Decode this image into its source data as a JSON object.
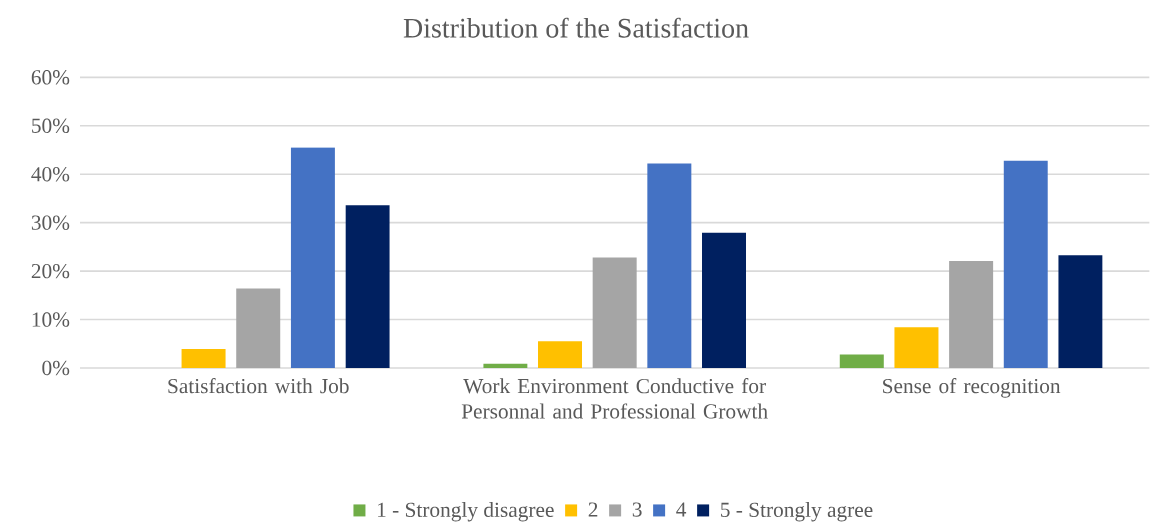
{
  "chart_data": {
    "type": "bar",
    "title": "Distribution of the Satisfaction",
    "categories": [
      "Satisfaction with Job",
      "Work Environment Conductive for Personnal and Professional Growth",
      "Sense of recognition"
    ],
    "series": [
      {
        "name": "1 - Strongly disagree",
        "color": "#70ad47",
        "values": [
          null,
          0.9,
          2.8
        ]
      },
      {
        "name": "2",
        "color": "#ffc000",
        "values": [
          3.9,
          5.5,
          8.4
        ]
      },
      {
        "name": "3",
        "color": "#a5a5a5",
        "values": [
          16.4,
          22.8,
          22.1
        ]
      },
      {
        "name": "4",
        "color": "#4472c4",
        "values": [
          45.5,
          42.2,
          42.8
        ]
      },
      {
        "name": "5 - Strongly agree",
        "color": "#002060",
        "values": [
          33.6,
          27.9,
          23.3
        ]
      }
    ],
    "ylim": [
      0,
      60
    ],
    "yticks": [
      {
        "value": 0,
        "label": "0%"
      },
      {
        "value": 10,
        "label": "10%"
      },
      {
        "value": 20,
        "label": "20%"
      },
      {
        "value": 30,
        "label": "30%"
      },
      {
        "value": 40,
        "label": "40%"
      },
      {
        "value": 50,
        "label": "50%"
      },
      {
        "value": 60,
        "label": "60%"
      }
    ],
    "grid": "y",
    "legend": "bottom"
  }
}
